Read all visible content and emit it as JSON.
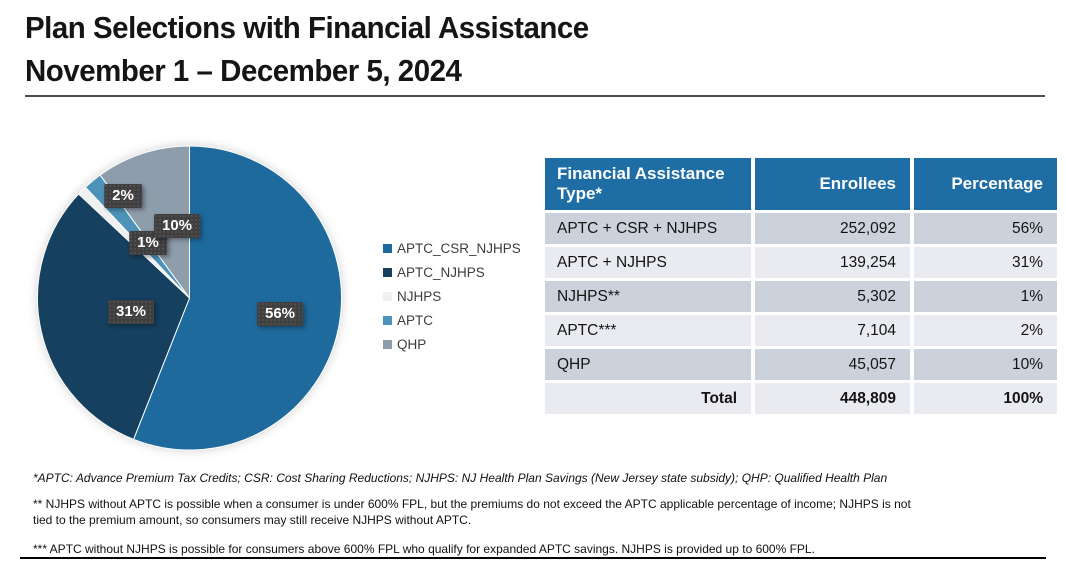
{
  "page": {
    "title_line1": "Plan Selections with Financial Assistance",
    "title_line2": "November 1 – December 5, 2024"
  },
  "chart_data": {
    "type": "pie",
    "title": "Plan Selections with Financial Assistance November 1 – December 5, 2024",
    "start_angle_deg": -90,
    "direction": "clockwise",
    "legend_position": "right",
    "slices": [
      {
        "key": "APTC_CSR_NJHPS",
        "legend_label": "APTC_CSR_NJHPS",
        "value": 56,
        "display": "56%",
        "color": "#1e6a9d"
      },
      {
        "key": "APTC_NJHPS",
        "legend_label": "APTC_NJHPS",
        "value": 31,
        "display": "31%",
        "color": "#15405f"
      },
      {
        "key": "NJHPS",
        "legend_label": "NJHPS",
        "value": 1,
        "display": "1%",
        "color": "#eef0f1"
      },
      {
        "key": "APTC",
        "legend_label": "APTC",
        "value": 2,
        "display": "2%",
        "color": "#4d92b8"
      },
      {
        "key": "QHP",
        "legend_label": "QHP",
        "value": 10,
        "display": "10%",
        "color": "#8e9dab"
      }
    ]
  },
  "table": {
    "columns": [
      "Financial Assistance Type*",
      "Enrollees",
      "Percentage"
    ],
    "rows": [
      {
        "type": "APTC + CSR + NJHPS",
        "enrollees": "252,092",
        "percentage": "56%",
        "is_total": false
      },
      {
        "type": "APTC + NJHPS",
        "enrollees": "139,254",
        "percentage": "31%",
        "is_total": false
      },
      {
        "type": "NJHPS**",
        "enrollees": "5,302",
        "percentage": "1%",
        "is_total": false
      },
      {
        "type": "APTC***",
        "enrollees": "7,104",
        "percentage": "2%",
        "is_total": false
      },
      {
        "type": "QHP",
        "enrollees": "45,057",
        "percentage": "10%",
        "is_total": false
      },
      {
        "type": "Total",
        "enrollees": "448,809",
        "percentage": "100%",
        "is_total": true
      }
    ]
  },
  "footnotes": {
    "definitions": "*APTC: Advance Premium Tax Credits; CSR: Cost Sharing Reductions; NJHPS: NJ Health Plan Savings (New Jersey state subsidy); QHP: Qualified Health Plan",
    "double_star": "** NJHPS without APTC is possible when a consumer is under 600% FPL, but the premiums do not exceed the APTC applicable percentage of income; NJHPS is not tied to the premium amount, so consumers may still receive NJHPS without APTC.",
    "triple_star": "*** APTC without NJHPS is possible for consumers above 600% FPL who qualify for expanded APTC savings. NJHPS is provided up to 600% FPL."
  },
  "colors": {
    "header_blue": "#1e6da4",
    "row_dark": "#ccd2db",
    "row_light": "#e9ebf0",
    "label_box": "#3f3f3f"
  }
}
